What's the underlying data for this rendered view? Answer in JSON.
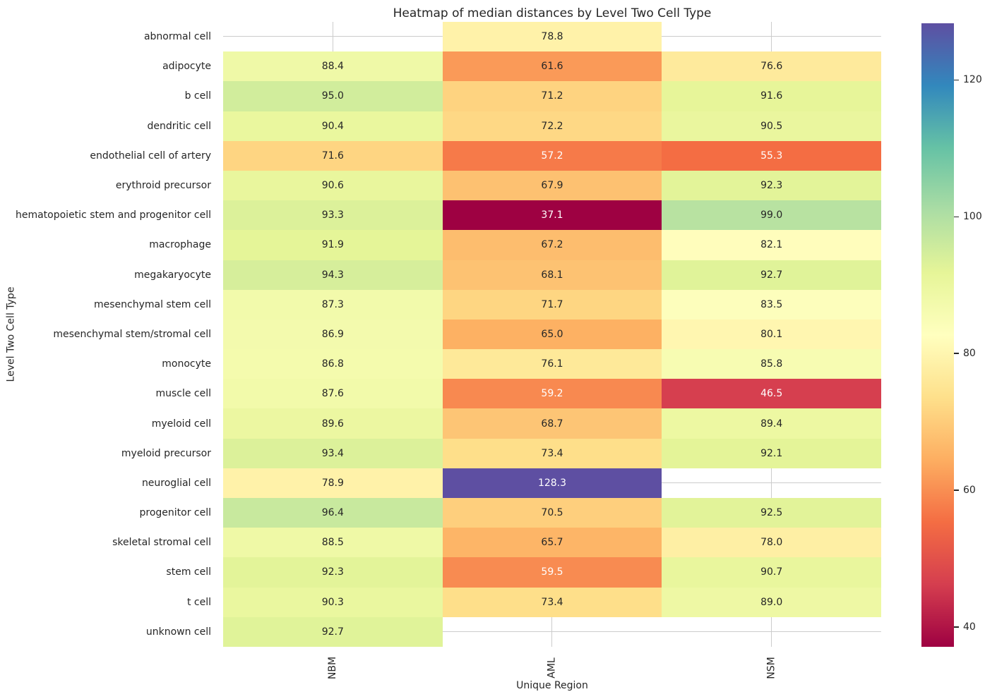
{
  "chart_data": {
    "type": "heatmap",
    "title": "Heatmap of median distances by Level Two Cell Type",
    "xlabel": "Unique Region",
    "ylabel": "Level Two Cell Type",
    "columns": [
      "NBM",
      "AML",
      "NSM"
    ],
    "rows": [
      "abnormal cell",
      "adipocyte",
      "b cell",
      "dendritic cell",
      "endothelial cell of artery",
      "erythroid precursor",
      "hematopoietic stem and progenitor cell",
      "macrophage",
      "megakaryocyte",
      "mesenchymal stem cell",
      "mesenchymal stem/stromal cell",
      "monocyte",
      "muscle cell",
      "myeloid cell",
      "myeloid precursor",
      "neuroglial cell",
      "progenitor cell",
      "skeletal stromal cell",
      "stem cell",
      "t cell",
      "unknown cell"
    ],
    "values": [
      [
        null,
        78.8,
        null
      ],
      [
        88.4,
        61.6,
        76.6
      ],
      [
        95.0,
        71.2,
        91.6
      ],
      [
        90.4,
        72.2,
        90.5
      ],
      [
        71.6,
        57.2,
        55.3
      ],
      [
        90.6,
        67.9,
        92.3
      ],
      [
        93.3,
        37.1,
        99.0
      ],
      [
        91.9,
        67.2,
        82.1
      ],
      [
        94.3,
        68.1,
        92.7
      ],
      [
        87.3,
        71.7,
        83.5
      ],
      [
        86.9,
        65.0,
        80.1
      ],
      [
        86.8,
        76.1,
        85.8
      ],
      [
        87.6,
        59.2,
        46.5
      ],
      [
        89.6,
        68.7,
        89.4
      ],
      [
        93.4,
        73.4,
        92.1
      ],
      [
        78.9,
        128.3,
        null
      ],
      [
        96.4,
        70.5,
        92.5
      ],
      [
        88.5,
        65.7,
        78.0
      ],
      [
        92.3,
        59.5,
        90.7
      ],
      [
        90.3,
        73.4,
        89.0
      ],
      [
        92.7,
        null,
        null
      ]
    ],
    "vmin": 37.1,
    "vmax": 128.3,
    "colormap": {
      "name": "Spectral",
      "stops": [
        "#9E0142",
        "#D53E4F",
        "#F46D43",
        "#FDAE61",
        "#FEE08B",
        "#FFFFBF",
        "#E6F598",
        "#ABDDA4",
        "#66C2A5",
        "#3288BD",
        "#5E4FA2"
      ]
    },
    "colorbar_ticks": [
      "40",
      "60",
      "80",
      "100",
      "120"
    ],
    "annotation_decimals": 1,
    "grid": true,
    "legend_position": "right",
    "colors": {
      "annotation_dark": "#262626",
      "annotation_light": "#ffffff",
      "gridline": "#cccccc",
      "background": "#ffffff"
    }
  }
}
